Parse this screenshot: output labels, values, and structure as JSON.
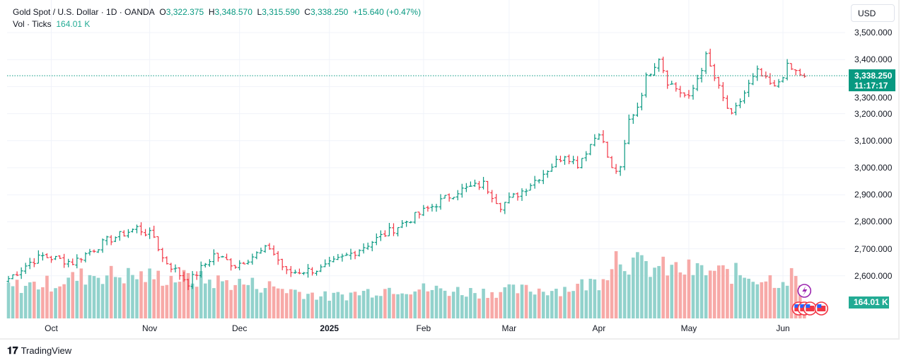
{
  "legend": {
    "symbol": "Gold Spot / U.S. Dollar · 1D · OANDA",
    "o_label": "O",
    "open": "3,322.375",
    "h_label": "H",
    "high": "3,348.570",
    "l_label": "L",
    "low": "3,315.590",
    "c_label": "C",
    "close": "3,338.250",
    "change": "+15.640 (+0.47%)",
    "vol_label": "Vol · Ticks",
    "vol_value": "164.01 K"
  },
  "currency": "USD",
  "last_price": "3,338.250",
  "countdown": "11:17:17",
  "volume_tag": "164.01 K",
  "brand": "TradingView",
  "colors": {
    "up": "#089981",
    "down": "#F23645",
    "vol_up": "#92D2CC",
    "vol_down": "#F7A9A7"
  },
  "chart_data": {
    "type": "ohlc",
    "y_ticks": [
      "3,500.000",
      "3,400.000",
      "3,300.000",
      "3,200.000",
      "3,100.000",
      "3,000.000",
      "2,900.000",
      "2,800.000",
      "2,700.000",
      "2,600.000"
    ],
    "y_tick_values": [
      3500,
      3400,
      3300,
      3200,
      3100,
      3000,
      2900,
      2800,
      2700,
      2600
    ],
    "x_ticks": [
      {
        "label": "Oct",
        "bar": 10,
        "bold": false
      },
      {
        "label": "Nov",
        "bar": 33,
        "bold": false
      },
      {
        "label": "Dec",
        "bar": 54,
        "bold": false
      },
      {
        "label": "2025",
        "bar": 75,
        "bold": true
      },
      {
        "label": "Feb",
        "bar": 97,
        "bold": false
      },
      {
        "label": "Mar",
        "bar": 117,
        "bold": false
      },
      {
        "label": "Apr",
        "bar": 138,
        "bold": false
      },
      {
        "label": "May",
        "bar": 159,
        "bold": false
      },
      {
        "label": "Jun",
        "bar": 181,
        "bold": false
      }
    ],
    "ylim": [
      2500,
      3540
    ],
    "bars": 187,
    "close_keypoints": [
      [
        0,
        2590
      ],
      [
        5,
        2650
      ],
      [
        8,
        2673
      ],
      [
        15,
        2650
      ],
      [
        18,
        2680
      ],
      [
        23,
        2730
      ],
      [
        30,
        2777
      ],
      [
        34,
        2745
      ],
      [
        36,
        2665
      ],
      [
        42,
        2575
      ],
      [
        48,
        2678
      ],
      [
        53,
        2640
      ],
      [
        61,
        2705
      ],
      [
        65,
        2612
      ],
      [
        73,
        2625
      ],
      [
        81,
        2690
      ],
      [
        88,
        2755
      ],
      [
        98,
        2848
      ],
      [
        105,
        2914
      ],
      [
        111,
        2940
      ],
      [
        115,
        2860
      ],
      [
        120,
        2914
      ],
      [
        125,
        2980
      ],
      [
        130,
        3050
      ],
      [
        133,
        3013
      ],
      [
        138,
        3136
      ],
      [
        141,
        2993
      ],
      [
        143,
        2990
      ],
      [
        145,
        3175
      ],
      [
        147,
        3228
      ],
      [
        149,
        3332
      ],
      [
        152,
        3410
      ],
      [
        154,
        3320
      ],
      [
        159,
        3254
      ],
      [
        163,
        3410
      ],
      [
        167,
        3254
      ],
      [
        169,
        3188
      ],
      [
        173,
        3306
      ],
      [
        175,
        3353
      ],
      [
        179,
        3293
      ],
      [
        182,
        3372
      ],
      [
        186,
        3338
      ]
    ],
    "volume_keypoints_k": [
      [
        0,
        300
      ],
      [
        10,
        330
      ],
      [
        20,
        420
      ],
      [
        40,
        380
      ],
      [
        60,
        310
      ],
      [
        75,
        200
      ],
      [
        90,
        290
      ],
      [
        110,
        250
      ],
      [
        130,
        280
      ],
      [
        138,
        350
      ],
      [
        142,
        600
      ],
      [
        146,
        520
      ],
      [
        150,
        480
      ],
      [
        160,
        450
      ],
      [
        170,
        420
      ],
      [
        180,
        360
      ],
      [
        184,
        420
      ],
      [
        186,
        164
      ]
    ]
  }
}
